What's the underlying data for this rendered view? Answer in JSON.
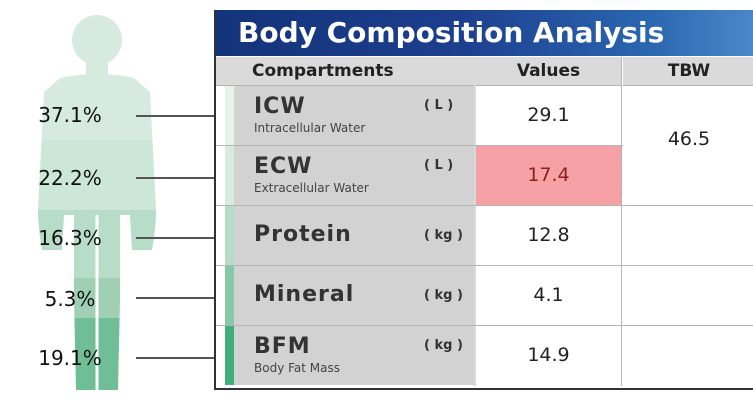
{
  "title": "Body Composition Analysis",
  "headers": {
    "compartments": "Compartments",
    "values": "Values",
    "tbw": "TBW"
  },
  "figure": {
    "percentages": [
      "37.1%",
      "22.2%",
      "16.3%",
      "5.3%",
      "19.1%"
    ],
    "segment_colors": [
      "#d6eadf",
      "#cce6d7",
      "#b7dcc7",
      "#9fd0b4",
      "#6fbe95"
    ]
  },
  "rows": [
    {
      "name": "ICW",
      "subtitle": "Intracellular Water",
      "unit": "( L )",
      "value": "29.1",
      "accent": "#e6f2ec"
    },
    {
      "name": "ECW",
      "subtitle": "Extracellular Water",
      "unit": "( L )",
      "value": "17.4",
      "accent": "#d7ecdf",
      "status": "alert"
    },
    {
      "name": "Protein",
      "subtitle": "",
      "unit": "( kg )",
      "value": "12.8",
      "accent": "#b6dcc6"
    },
    {
      "name": "Mineral",
      "subtitle": "",
      "unit": "( kg )",
      "value": "4.1",
      "accent": "#86c9a6"
    },
    {
      "name": "BFM",
      "subtitle": "Body Fat Mass",
      "unit": "( kg )",
      "value": "14.9",
      "accent": "#3fae7c"
    }
  ],
  "tbw_value": "46.5",
  "colors": {
    "title_bg": "#1c3f8e",
    "alert_bg": "#f5a1a5",
    "header_bg": "#dadada"
  }
}
